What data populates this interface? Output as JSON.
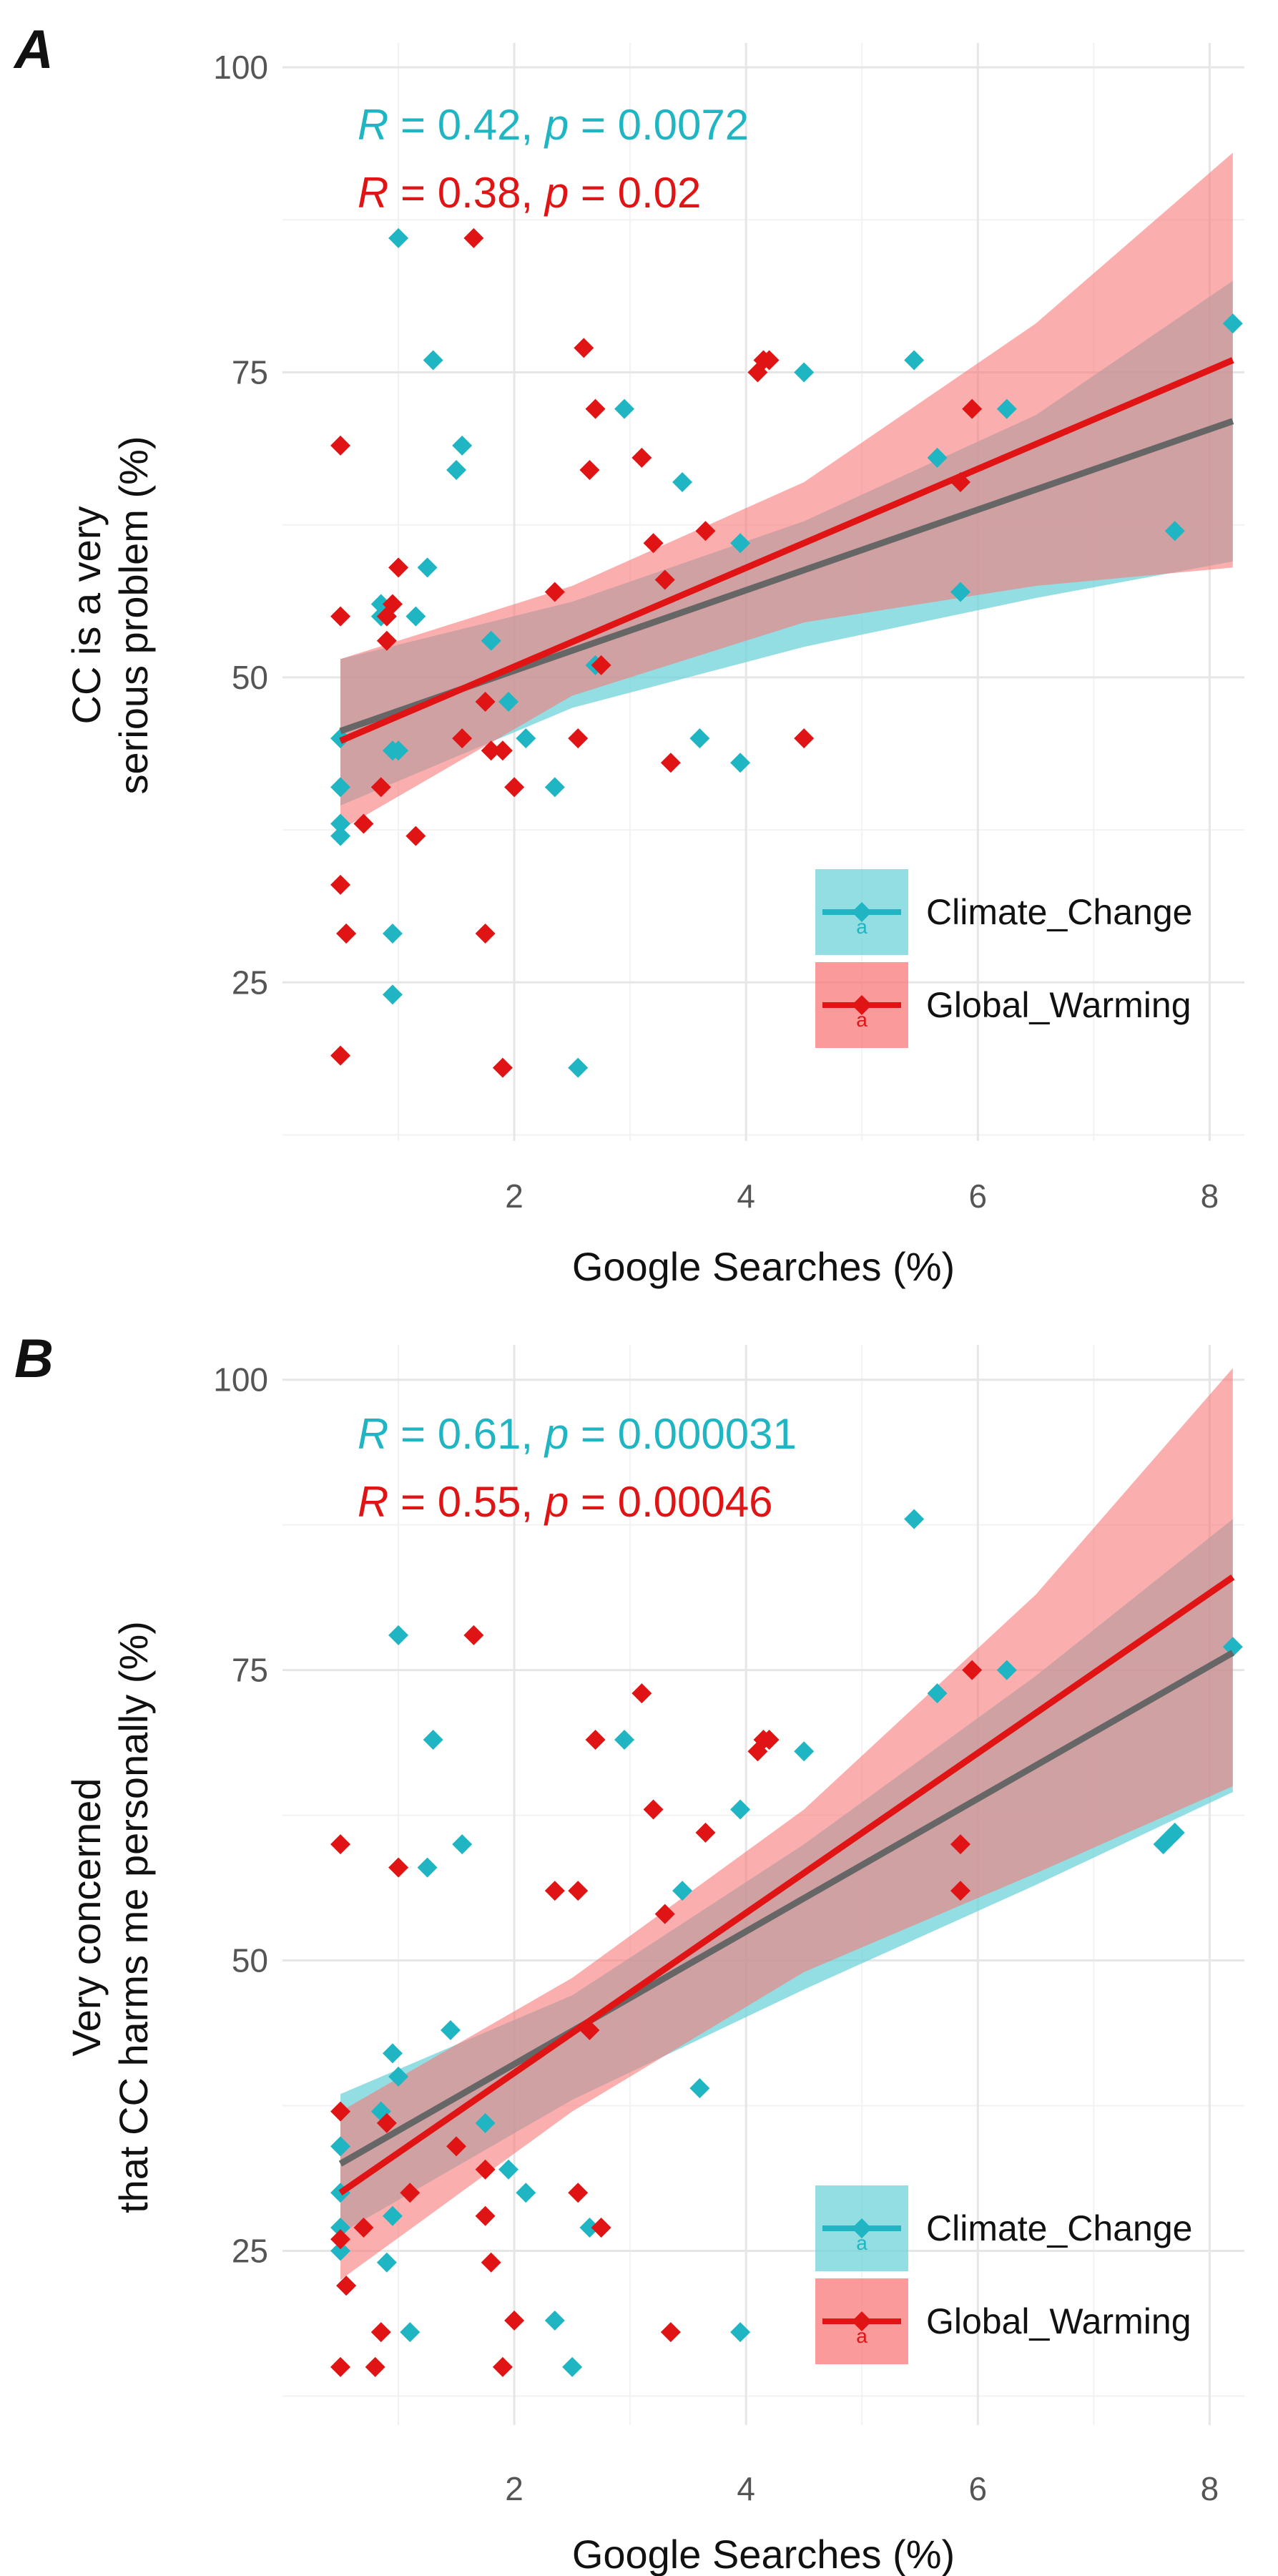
{
  "colors": {
    "climate_change": "#1fb5c2",
    "global_warming": "#e01414",
    "climate_change_band": "#6fd3da",
    "global_warming_band": "#f87878",
    "overlap_line": "#666666"
  },
  "chart_data": [
    {
      "type": "scatter",
      "panel_label": "A",
      "xlabel": "Google Searches (%)",
      "ylabel_lines": [
        "CC is a very",
        "serious problem (%)"
      ],
      "xlim": [
        0,
        8.3
      ],
      "ylim": [
        12,
        102
      ],
      "x_ticks": [
        2,
        4,
        6,
        8
      ],
      "x_tick_labels": [
        "2",
        "4",
        "6",
        "8"
      ],
      "y_ticks": [
        25,
        50,
        75,
        100
      ],
      "y_tick_labels": [
        "25",
        "50",
        "75",
        "100"
      ],
      "stats": [
        {
          "series": "Climate_Change",
          "r_label": "R",
          "r_text": " = 0.42, ",
          "p_label": "p",
          "p_text": " = 0.0072"
        },
        {
          "series": "Global_Warming",
          "r_label": "R",
          "r_text": " = 0.38, ",
          "p_label": "p",
          "p_text": " = 0.02"
        }
      ],
      "legend": [
        "Climate_Change",
        "Global_Warming"
      ],
      "legend_key_glyph": "a",
      "series": [
        {
          "name": "Climate_Change",
          "fit": {
            "x": [
              0.5,
              8.2
            ],
            "y": [
              45.6,
              71.0
            ]
          },
          "ci_band": {
            "x": [
              0.5,
              2.5,
              4.5,
              6.5,
              8.2
            ],
            "upper": [
              51.5,
              56.2,
              62.8,
              71.5,
              82.5
            ],
            "lower": [
              39.5,
              47.5,
              52.5,
              56.5,
              59.5
            ]
          },
          "points": [
            {
              "x": 0.5,
              "y": 45
            },
            {
              "x": 0.5,
              "y": 41
            },
            {
              "x": 0.5,
              "y": 38
            },
            {
              "x": 0.5,
              "y": 37
            },
            {
              "x": 0.55,
              "y": 29
            },
            {
              "x": 0.85,
              "y": 56
            },
            {
              "x": 0.85,
              "y": 55
            },
            {
              "x": 0.95,
              "y": 44
            },
            {
              "x": 1.0,
              "y": 86
            },
            {
              "x": 1.0,
              "y": 44
            },
            {
              "x": 0.95,
              "y": 29
            },
            {
              "x": 0.95,
              "y": 24
            },
            {
              "x": 1.15,
              "y": 55
            },
            {
              "x": 1.25,
              "y": 59
            },
            {
              "x": 1.3,
              "y": 76
            },
            {
              "x": 1.5,
              "y": 67
            },
            {
              "x": 1.55,
              "y": 69
            },
            {
              "x": 1.8,
              "y": 53
            },
            {
              "x": 1.95,
              "y": 48
            },
            {
              "x": 2.1,
              "y": 45
            },
            {
              "x": 2.35,
              "y": 41
            },
            {
              "x": 2.55,
              "y": 18
            },
            {
              "x": 2.7,
              "y": 51
            },
            {
              "x": 2.95,
              "y": 72
            },
            {
              "x": 3.3,
              "y": 58
            },
            {
              "x": 3.45,
              "y": 66
            },
            {
              "x": 3.6,
              "y": 45
            },
            {
              "x": 3.95,
              "y": 61
            },
            {
              "x": 3.95,
              "y": 43
            },
            {
              "x": 4.5,
              "y": 75
            },
            {
              "x": 5.45,
              "y": 76
            },
            {
              "x": 5.65,
              "y": 68
            },
            {
              "x": 5.85,
              "y": 66
            },
            {
              "x": 5.85,
              "y": 57
            },
            {
              "x": 6.25,
              "y": 72
            },
            {
              "x": 7.7,
              "y": 62
            },
            {
              "x": 8.2,
              "y": 79
            }
          ]
        },
        {
          "name": "Global_Warming",
          "fit": {
            "x": [
              0.5,
              8.2
            ],
            "y": [
              44.8,
              76.0
            ]
          },
          "ci_band": {
            "x": [
              0.5,
              2.5,
              4.5,
              6.5,
              8.2
            ],
            "upper": [
              51.5,
              57.5,
              66.0,
              79.0,
              93.0
            ],
            "lower": [
              37.5,
              48.5,
              54.5,
              57.5,
              59.0
            ]
          },
          "points": [
            {
              "x": 0.5,
              "y": 69
            },
            {
              "x": 0.5,
              "y": 55
            },
            {
              "x": 0.5,
              "y": 33
            },
            {
              "x": 0.55,
              "y": 29
            },
            {
              "x": 0.5,
              "y": 19
            },
            {
              "x": 0.7,
              "y": 38
            },
            {
              "x": 0.85,
              "y": 41
            },
            {
              "x": 0.9,
              "y": 53
            },
            {
              "x": 0.9,
              "y": 55
            },
            {
              "x": 0.95,
              "y": 56
            },
            {
              "x": 1.0,
              "y": 59
            },
            {
              "x": 1.15,
              "y": 37
            },
            {
              "x": 1.55,
              "y": 45
            },
            {
              "x": 1.65,
              "y": 86
            },
            {
              "x": 1.75,
              "y": 48
            },
            {
              "x": 1.75,
              "y": 29
            },
            {
              "x": 1.8,
              "y": 44
            },
            {
              "x": 1.9,
              "y": 44
            },
            {
              "x": 1.9,
              "y": 18
            },
            {
              "x": 2.0,
              "y": 41
            },
            {
              "x": 2.35,
              "y": 57
            },
            {
              "x": 2.55,
              "y": 45
            },
            {
              "x": 2.6,
              "y": 77
            },
            {
              "x": 2.65,
              "y": 67
            },
            {
              "x": 2.7,
              "y": 72
            },
            {
              "x": 2.75,
              "y": 51
            },
            {
              "x": 3.1,
              "y": 68
            },
            {
              "x": 3.2,
              "y": 61
            },
            {
              "x": 3.3,
              "y": 58
            },
            {
              "x": 3.35,
              "y": 43
            },
            {
              "x": 3.65,
              "y": 62
            },
            {
              "x": 4.1,
              "y": 75
            },
            {
              "x": 4.15,
              "y": 76
            },
            {
              "x": 4.2,
              "y": 76
            },
            {
              "x": 4.5,
              "y": 45
            },
            {
              "x": 5.85,
              "y": 66
            },
            {
              "x": 5.95,
              "y": 72
            }
          ]
        }
      ]
    },
    {
      "type": "scatter",
      "panel_label": "B",
      "xlabel": "Google Searches (%)",
      "ylabel_lines": [
        "Very concerned",
        "that CC harms me personally (%)"
      ],
      "xlim": [
        0,
        8.3
      ],
      "ylim": [
        10,
        103
      ],
      "x_ticks": [
        2,
        4,
        6,
        8
      ],
      "x_tick_labels": [
        "2",
        "4",
        "6",
        "8"
      ],
      "y_ticks": [
        25,
        50,
        75,
        100
      ],
      "y_tick_labels": [
        "25",
        "50",
        "75",
        "100"
      ],
      "stats": [
        {
          "series": "Climate_Change",
          "r_label": "R",
          "r_text": " = 0.61, ",
          "p_label": "p",
          "p_text": " = 0.000031"
        },
        {
          "series": "Global_Warming",
          "r_label": "R",
          "r_text": " = 0.55, ",
          "p_label": "p",
          "p_text": " = 0.00046"
        }
      ],
      "legend": [
        "Climate_Change",
        "Global_Warming"
      ],
      "legend_key_glyph": "a",
      "series": [
        {
          "name": "Climate_Change",
          "fit": {
            "x": [
              0.5,
              8.2
            ],
            "y": [
              32.5,
              76.5
            ]
          },
          "ci_band": {
            "x": [
              0.5,
              2.5,
              4.5,
              6.5,
              8.2
            ],
            "upper": [
              38.5,
              47.0,
              60.0,
              74.5,
              88.0
            ],
            "lower": [
              26.5,
              38.0,
              47.5,
              56.5,
              64.5
            ]
          },
          "points": [
            {
              "x": 0.5,
              "y": 34
            },
            {
              "x": 0.5,
              "y": 30
            },
            {
              "x": 0.5,
              "y": 27
            },
            {
              "x": 0.5,
              "y": 25
            },
            {
              "x": 0.55,
              "y": 22
            },
            {
              "x": 0.85,
              "y": 37
            },
            {
              "x": 0.9,
              "y": 24
            },
            {
              "x": 0.95,
              "y": 42
            },
            {
              "x": 0.95,
              "y": 28
            },
            {
              "x": 1.0,
              "y": 78
            },
            {
              "x": 1.0,
              "y": 40
            },
            {
              "x": 1.1,
              "y": 18
            },
            {
              "x": 1.25,
              "y": 58
            },
            {
              "x": 1.3,
              "y": 69
            },
            {
              "x": 1.45,
              "y": 44
            },
            {
              "x": 1.55,
              "y": 60
            },
            {
              "x": 1.75,
              "y": 36
            },
            {
              "x": 1.95,
              "y": 32
            },
            {
              "x": 2.1,
              "y": 30
            },
            {
              "x": 2.35,
              "y": 19
            },
            {
              "x": 2.5,
              "y": 15
            },
            {
              "x": 2.65,
              "y": 27
            },
            {
              "x": 2.95,
              "y": 69
            },
            {
              "x": 3.3,
              "y": 54
            },
            {
              "x": 3.45,
              "y": 56
            },
            {
              "x": 3.6,
              "y": 39
            },
            {
              "x": 3.95,
              "y": 63
            },
            {
              "x": 3.95,
              "y": 18
            },
            {
              "x": 4.5,
              "y": 68
            },
            {
              "x": 5.45,
              "y": 88
            },
            {
              "x": 5.65,
              "y": 73
            },
            {
              "x": 6.25,
              "y": 75
            },
            {
              "x": 7.6,
              "y": 60
            },
            {
              "x": 7.65,
              "y": 60.5
            },
            {
              "x": 7.7,
              "y": 61
            },
            {
              "x": 8.2,
              "y": 77
            }
          ]
        },
        {
          "name": "Global_Warming",
          "fit": {
            "x": [
              0.5,
              8.2
            ],
            "y": [
              30.0,
              83.0
            ]
          },
          "ci_band": {
            "x": [
              0.5,
              2.5,
              4.5,
              6.5,
              8.2
            ],
            "upper": [
              37.0,
              48.5,
              63.0,
              81.5,
              101.0
            ],
            "lower": [
              22.5,
              37.0,
              49.0,
              57.5,
              65.0
            ]
          },
          "points": [
            {
              "x": 0.5,
              "y": 60
            },
            {
              "x": 0.5,
              "y": 37
            },
            {
              "x": 0.5,
              "y": 26
            },
            {
              "x": 0.55,
              "y": 22
            },
            {
              "x": 0.5,
              "y": 15
            },
            {
              "x": 0.7,
              "y": 27
            },
            {
              "x": 0.8,
              "y": 15
            },
            {
              "x": 0.85,
              "y": 18
            },
            {
              "x": 0.9,
              "y": 36
            },
            {
              "x": 1.0,
              "y": 58
            },
            {
              "x": 1.1,
              "y": 30
            },
            {
              "x": 1.5,
              "y": 34
            },
            {
              "x": 1.65,
              "y": 78
            },
            {
              "x": 1.75,
              "y": 32
            },
            {
              "x": 1.75,
              "y": 28
            },
            {
              "x": 1.8,
              "y": 24
            },
            {
              "x": 1.9,
              "y": 15
            },
            {
              "x": 2.0,
              "y": 19
            },
            {
              "x": 2.35,
              "y": 56
            },
            {
              "x": 2.55,
              "y": 56
            },
            {
              "x": 2.55,
              "y": 30
            },
            {
              "x": 2.65,
              "y": 44
            },
            {
              "x": 2.7,
              "y": 69
            },
            {
              "x": 2.75,
              "y": 27
            },
            {
              "x": 3.1,
              "y": 73
            },
            {
              "x": 3.2,
              "y": 63
            },
            {
              "x": 3.3,
              "y": 54
            },
            {
              "x": 3.35,
              "y": 18
            },
            {
              "x": 3.65,
              "y": 61
            },
            {
              "x": 4.1,
              "y": 68
            },
            {
              "x": 4.15,
              "y": 69
            },
            {
              "x": 4.2,
              "y": 69
            },
            {
              "x": 5.85,
              "y": 60
            },
            {
              "x": 5.85,
              "y": 56
            },
            {
              "x": 5.95,
              "y": 75
            }
          ]
        }
      ]
    }
  ]
}
